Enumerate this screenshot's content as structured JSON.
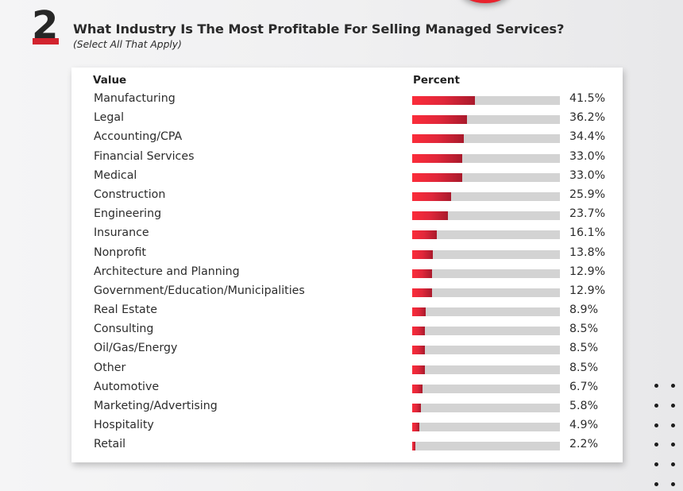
{
  "question": {
    "number": "2",
    "title": "What Industry Is The Most Profitable For Selling Managed Services?",
    "subtitle": "(Select All That Apply)"
  },
  "table": {
    "headers": {
      "value": "Value",
      "percent": "Percent"
    }
  },
  "colors": {
    "bar_start": "#fb2c3a",
    "bar_end": "#a91a2c",
    "track": "#d3d3d3",
    "accent": "#d2232e"
  },
  "chart_data": {
    "type": "bar",
    "orientation": "horizontal",
    "title": "What Industry Is The Most Profitable For Selling Managed Services?",
    "subtitle": "(Select All That Apply)",
    "xlabel": "Percent",
    "ylabel": "Value",
    "xlim": [
      0,
      100
    ],
    "grid": false,
    "legend": "none",
    "categories": [
      "Manufacturing",
      "Legal",
      "Accounting/CPA",
      "Financial Services",
      "Medical",
      "Construction",
      "Engineering",
      "Insurance",
      "Nonprofit",
      "Architecture and Planning",
      "Government/Education/Municipalities",
      "Real Estate",
      "Consulting",
      "Oil/Gas/Energy",
      "Other",
      "Automotive",
      "Marketing/Advertising",
      "Hospitality",
      "Retail"
    ],
    "values": [
      41.5,
      36.2,
      34.4,
      33.0,
      33.0,
      25.9,
      23.7,
      16.1,
      13.8,
      12.9,
      12.9,
      8.9,
      8.5,
      8.5,
      8.5,
      6.7,
      5.8,
      4.9,
      2.2
    ],
    "value_labels": [
      "41.5%",
      "36.2%",
      "34.4%",
      "33.0%",
      "33.0%",
      "25.9%",
      "23.7%",
      "16.1%",
      "13.8%",
      "12.9%",
      "12.9%",
      "8.9%",
      "8.5%",
      "8.5%",
      "8.5%",
      "6.7%",
      "5.8%",
      "4.9%",
      "2.2%"
    ]
  }
}
